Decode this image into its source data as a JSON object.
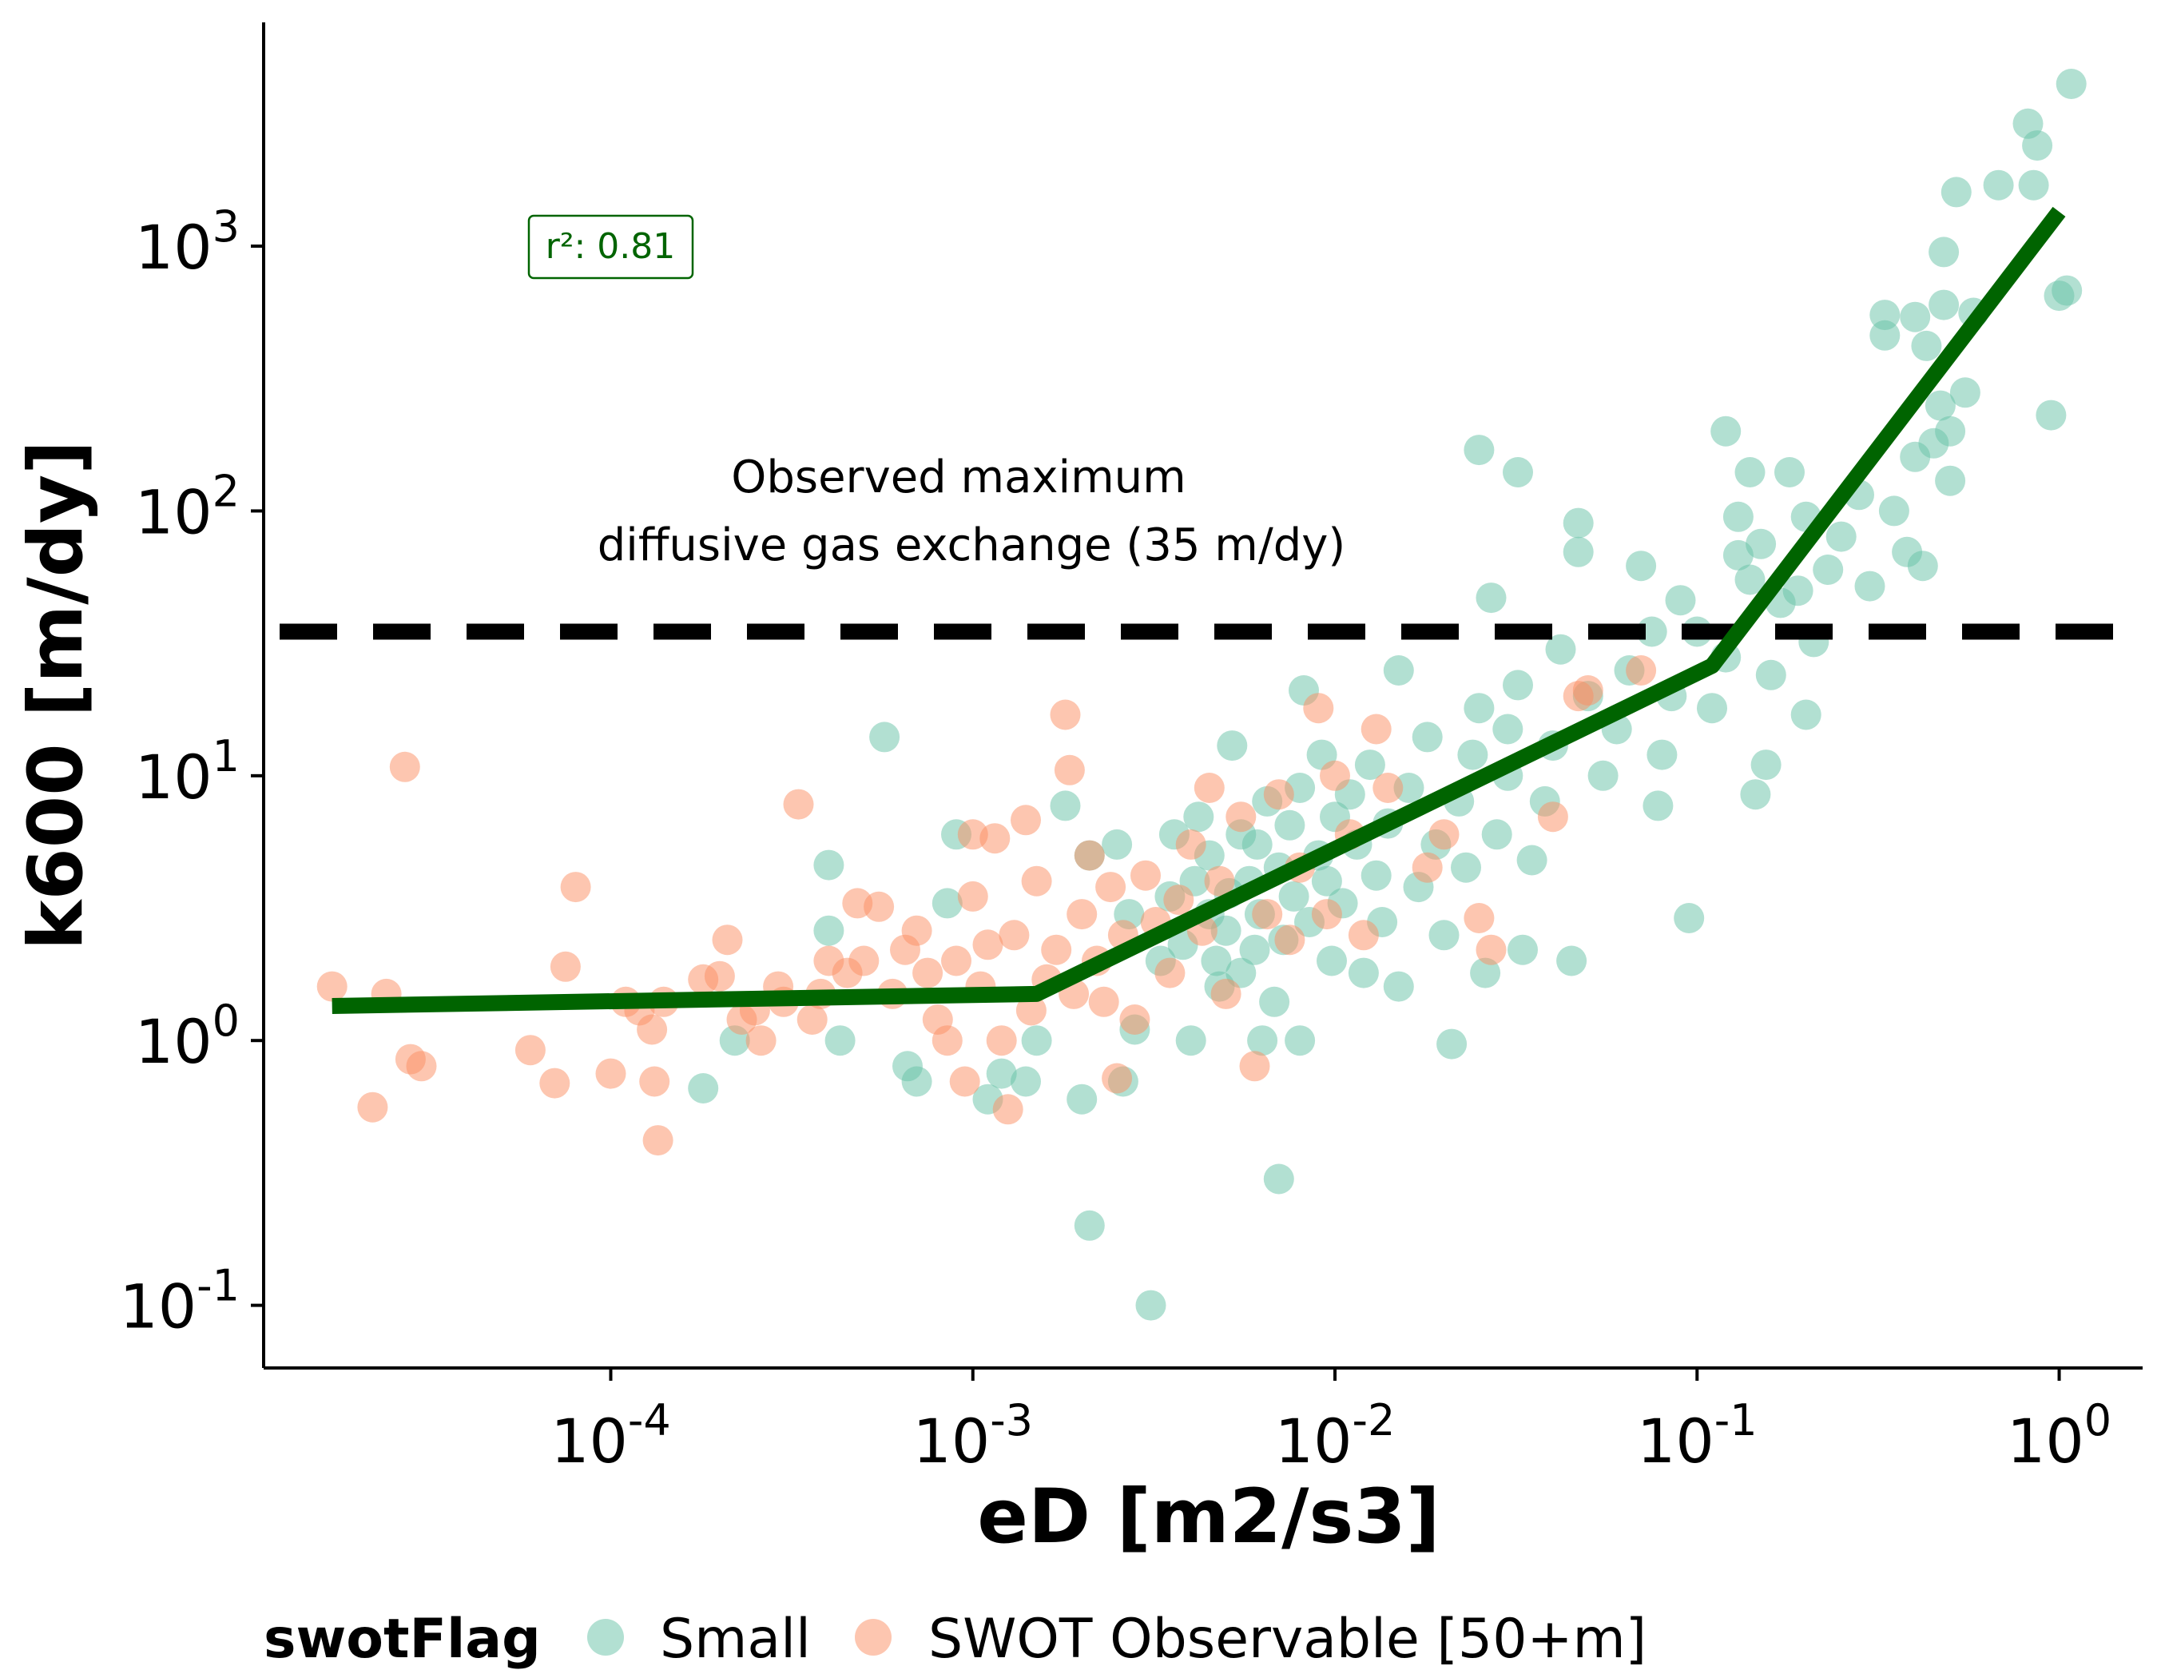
{
  "chart_data": {
    "type": "scatter",
    "xlabel": "eD [m2/s3]",
    "ylabel": "k600 [m/dy]",
    "xscale": "log",
    "yscale": "log",
    "xlim": [
      1.1e-05,
      1.7
    ],
    "ylim": [
      0.058,
      7000
    ],
    "x_ticks": [
      {
        "value": 0.0001,
        "base": "10",
        "exp": "-4"
      },
      {
        "value": 0.001,
        "base": "10",
        "exp": "-3"
      },
      {
        "value": 0.01,
        "base": "10",
        "exp": "-2"
      },
      {
        "value": 0.1,
        "base": "10",
        "exp": "-1"
      },
      {
        "value": 1,
        "base": "10",
        "exp": "0"
      }
    ],
    "y_ticks": [
      {
        "value": 0.1,
        "base": "10",
        "exp": "-1"
      },
      {
        "value": 1,
        "base": "10",
        "exp": "0"
      },
      {
        "value": 10,
        "base": "10",
        "exp": "1"
      },
      {
        "value": 100,
        "base": "10",
        "exp": "2"
      },
      {
        "value": 1000,
        "base": "10",
        "exp": "3"
      }
    ],
    "legend": {
      "title": "swotFlag",
      "position": "bottom-left, below plot",
      "entries": [
        "Small",
        "SWOT Observable [50+m]"
      ]
    },
    "series": [
      {
        "name": "Small",
        "color": "#66c2a5",
        "points": [
          [
            0.00018,
            0.66
          ],
          [
            0.00022,
            1.0
          ],
          [
            0.0004,
            4.6
          ],
          [
            0.0004,
            2.6
          ],
          [
            0.00043,
            1.0
          ],
          [
            0.00057,
            14.0
          ],
          [
            0.00066,
            0.8
          ],
          [
            0.0007,
            0.7
          ],
          [
            0.00085,
            3.3
          ],
          [
            0.0009,
            6.0
          ],
          [
            0.0011,
            0.6
          ],
          [
            0.0012,
            0.75
          ],
          [
            0.0014,
            0.7
          ],
          [
            0.0015,
            1.0
          ],
          [
            0.0018,
            7.7
          ],
          [
            0.002,
            0.6
          ],
          [
            0.0021,
            0.2
          ],
          [
            0.0021,
            5.0
          ],
          [
            0.0025,
            5.5
          ],
          [
            0.0026,
            0.7
          ],
          [
            0.0027,
            3.0
          ],
          [
            0.0028,
            1.1
          ],
          [
            0.0031,
            0.1
          ],
          [
            0.0033,
            2.0
          ],
          [
            0.0035,
            3.5
          ],
          [
            0.0036,
            6.0
          ],
          [
            0.0038,
            2.3
          ],
          [
            0.004,
            1.0
          ],
          [
            0.0041,
            4.0
          ],
          [
            0.0042,
            7.0
          ],
          [
            0.0045,
            3.0
          ],
          [
            0.0045,
            5.0
          ],
          [
            0.0047,
            2.0
          ],
          [
            0.0048,
            1.6
          ],
          [
            0.005,
            2.6
          ],
          [
            0.0051,
            3.6
          ],
          [
            0.0052,
            13.0
          ],
          [
            0.0055,
            6.0
          ],
          [
            0.0055,
            1.8
          ],
          [
            0.0058,
            4.0
          ],
          [
            0.006,
            2.2
          ],
          [
            0.0061,
            5.5
          ],
          [
            0.0062,
            3.0
          ],
          [
            0.0063,
            1.0
          ],
          [
            0.0065,
            8.0
          ],
          [
            0.0068,
            1.4
          ],
          [
            0.007,
            4.5
          ],
          [
            0.007,
            0.3
          ],
          [
            0.0072,
            2.4
          ],
          [
            0.0075,
            6.5
          ],
          [
            0.0077,
            3.5
          ],
          [
            0.008,
            1.0
          ],
          [
            0.008,
            9.0
          ],
          [
            0.0082,
            21.0
          ],
          [
            0.0085,
            2.8
          ],
          [
            0.009,
            5.0
          ],
          [
            0.0092,
            12.0
          ],
          [
            0.0095,
            4.0
          ],
          [
            0.0098,
            2.0
          ],
          [
            0.01,
            7.0
          ],
          [
            0.0105,
            3.3
          ],
          [
            0.011,
            8.5
          ],
          [
            0.0115,
            5.5
          ],
          [
            0.012,
            1.8
          ],
          [
            0.0125,
            11.0
          ],
          [
            0.013,
            4.2
          ],
          [
            0.0135,
            2.8
          ],
          [
            0.014,
            6.6
          ],
          [
            0.015,
            1.6
          ],
          [
            0.015,
            25.0
          ],
          [
            0.016,
            9.0
          ],
          [
            0.017,
            3.8
          ],
          [
            0.018,
            14.0
          ],
          [
            0.019,
            5.5
          ],
          [
            0.02,
            2.5
          ],
          [
            0.021,
            0.97
          ],
          [
            0.022,
            8.0
          ],
          [
            0.023,
            4.5
          ],
          [
            0.024,
            12.0
          ],
          [
            0.025,
            18.0
          ],
          [
            0.025,
            170.0
          ],
          [
            0.026,
            1.8
          ],
          [
            0.027,
            47.0
          ],
          [
            0.028,
            6.0
          ],
          [
            0.03,
            10.0
          ],
          [
            0.03,
            15.0
          ],
          [
            0.032,
            22.0
          ],
          [
            0.032,
            140.0
          ],
          [
            0.033,
            2.2
          ],
          [
            0.035,
            4.8
          ],
          [
            0.038,
            8.0
          ],
          [
            0.04,
            13.0
          ],
          [
            0.042,
            30.0
          ],
          [
            0.045,
            2.0
          ],
          [
            0.047,
            90.0
          ],
          [
            0.047,
            70.0
          ],
          [
            0.05,
            20.0
          ],
          [
            0.055,
            10.0
          ],
          [
            0.06,
            15.0
          ],
          [
            0.065,
            25.0
          ],
          [
            0.07,
            62.0
          ],
          [
            0.075,
            35.0
          ],
          [
            0.078,
            7.7
          ],
          [
            0.08,
            12.0
          ],
          [
            0.085,
            20.0
          ],
          [
            0.09,
            46.0
          ],
          [
            0.095,
            2.9
          ],
          [
            0.1,
            35.0
          ],
          [
            0.11,
            18.0
          ],
          [
            0.12,
            28.0
          ],
          [
            0.12,
            200.0
          ],
          [
            0.13,
            95.0
          ],
          [
            0.13,
            68.0
          ],
          [
            0.14,
            140.0
          ],
          [
            0.14,
            55.0
          ],
          [
            0.145,
            8.5
          ],
          [
            0.15,
            75.0
          ],
          [
            0.155,
            11.0
          ],
          [
            0.16,
            24.0
          ],
          [
            0.17,
            45.0
          ],
          [
            0.18,
            140.0
          ],
          [
            0.19,
            50.0
          ],
          [
            0.2,
            95.0
          ],
          [
            0.2,
            17.0
          ],
          [
            0.21,
            32.0
          ],
          [
            0.23,
            60.0
          ],
          [
            0.25,
            80.0
          ],
          [
            0.28,
            115.0
          ],
          [
            0.3,
            52.0
          ],
          [
            0.33,
            550.0
          ],
          [
            0.33,
            460.0
          ],
          [
            0.35,
            100.0
          ],
          [
            0.38,
            70.0
          ],
          [
            0.4,
            160.0
          ],
          [
            0.4,
            540.0
          ],
          [
            0.42,
            62.0
          ],
          [
            0.43,
            420.0
          ],
          [
            0.45,
            180.0
          ],
          [
            0.47,
            250.0
          ],
          [
            0.48,
            600.0
          ],
          [
            0.48,
            950.0
          ],
          [
            0.5,
            130.0
          ],
          [
            0.5,
            200.0
          ],
          [
            0.52,
            1600.0
          ],
          [
            0.55,
            280.0
          ],
          [
            0.58,
            560.0
          ],
          [
            0.68,
            1700.0
          ],
          [
            0.82,
            2900.0
          ],
          [
            0.85,
            1700.0
          ],
          [
            0.87,
            2400.0
          ],
          [
            0.95,
            230.0
          ],
          [
            1.0,
            650.0
          ],
          [
            1.05,
            680.0
          ],
          [
            1.08,
            4100.0
          ]
        ]
      },
      {
        "name": "SWOT Observable [50+m]",
        "color": "#fc8d62",
        "points": [
          [
            1.7e-05,
            1.6
          ],
          [
            2.2e-05,
            0.56
          ],
          [
            2.4e-05,
            1.5
          ],
          [
            2.7e-05,
            10.8
          ],
          [
            2.8e-05,
            0.85
          ],
          [
            3e-05,
            0.8
          ],
          [
            6e-05,
            0.92
          ],
          [
            7e-05,
            0.69
          ],
          [
            7.5e-05,
            1.9
          ],
          [
            8e-05,
            3.8
          ],
          [
            0.0001,
            0.75
          ],
          [
            0.00011,
            1.4
          ],
          [
            0.00012,
            1.3
          ],
          [
            0.00013,
            1.1
          ],
          [
            0.000132,
            0.7
          ],
          [
            0.000135,
            0.42
          ],
          [
            0.00014,
            1.4
          ],
          [
            0.00018,
            1.7
          ],
          [
            0.0002,
            1.75
          ],
          [
            0.00021,
            2.4
          ],
          [
            0.00023,
            1.2
          ],
          [
            0.00025,
            1.3
          ],
          [
            0.00026,
            1.0
          ],
          [
            0.00029,
            1.6
          ],
          [
            0.0003,
            1.4
          ],
          [
            0.00033,
            7.8
          ],
          [
            0.00036,
            1.2
          ],
          [
            0.00038,
            1.5
          ],
          [
            0.0004,
            2.0
          ],
          [
            0.00045,
            1.8
          ],
          [
            0.00048,
            3.3
          ],
          [
            0.0005,
            2.0
          ],
          [
            0.00055,
            3.2
          ],
          [
            0.0006,
            1.5
          ],
          [
            0.00065,
            2.2
          ],
          [
            0.0007,
            2.6
          ],
          [
            0.00075,
            1.8
          ],
          [
            0.0008,
            1.2
          ],
          [
            0.00085,
            1.0
          ],
          [
            0.0009,
            2.0
          ],
          [
            0.00095,
            0.7
          ],
          [
            0.001,
            6.0
          ],
          [
            0.001,
            3.5
          ],
          [
            0.00105,
            1.6
          ],
          [
            0.0011,
            2.3
          ],
          [
            0.00115,
            5.8
          ],
          [
            0.0012,
            1.0
          ],
          [
            0.00125,
            0.55
          ],
          [
            0.0013,
            2.5
          ],
          [
            0.0014,
            6.8
          ],
          [
            0.00145,
            1.3
          ],
          [
            0.0015,
            4.0
          ],
          [
            0.0016,
            1.7
          ],
          [
            0.0017,
            2.2
          ],
          [
            0.0018,
            17.0
          ],
          [
            0.00185,
            10.5
          ],
          [
            0.0019,
            1.5
          ],
          [
            0.002,
            3.0
          ],
          [
            0.0021,
            5.0
          ],
          [
            0.0022,
            2.0
          ],
          [
            0.0023,
            1.4
          ],
          [
            0.0024,
            3.8
          ],
          [
            0.0025,
            0.72
          ],
          [
            0.0026,
            2.5
          ],
          [
            0.0028,
            1.2
          ],
          [
            0.003,
            4.2
          ],
          [
            0.0032,
            2.8
          ],
          [
            0.0035,
            1.8
          ],
          [
            0.0037,
            3.4
          ],
          [
            0.004,
            5.5
          ],
          [
            0.0043,
            2.6
          ],
          [
            0.0045,
            9.0
          ],
          [
            0.0048,
            4.0
          ],
          [
            0.005,
            1.5
          ],
          [
            0.0055,
            7.0
          ],
          [
            0.006,
            0.8
          ],
          [
            0.0065,
            3.0
          ],
          [
            0.007,
            8.5
          ],
          [
            0.0075,
            2.4
          ],
          [
            0.008,
            4.5
          ],
          [
            0.009,
            18.0
          ],
          [
            0.0095,
            3.0
          ],
          [
            0.01,
            10.0
          ],
          [
            0.011,
            6.0
          ],
          [
            0.012,
            2.5
          ],
          [
            0.013,
            15.0
          ],
          [
            0.014,
            9.0
          ],
          [
            0.018,
            4.5
          ],
          [
            0.02,
            6.0
          ],
          [
            0.025,
            2.9
          ],
          [
            0.027,
            2.2
          ],
          [
            0.04,
            7.0
          ],
          [
            0.047,
            20.0
          ],
          [
            0.05,
            21.0
          ],
          [
            0.07,
            25.0
          ]
        ]
      }
    ],
    "fit_line": {
      "color": "#006400",
      "points": [
        [
          1.7e-05,
          1.35
        ],
        [
          0.0015,
          1.5
        ],
        [
          0.11,
          26.0
        ],
        [
          1.0,
          1350.0
        ]
      ],
      "r2_label": "r²: 0.81"
    },
    "reference_line": {
      "value": 35,
      "style": "dashed",
      "color": "#000000",
      "label_line1": "Observed maximum",
      "label_line2": "diffusive gas exchange (35 m/dy)"
    }
  }
}
